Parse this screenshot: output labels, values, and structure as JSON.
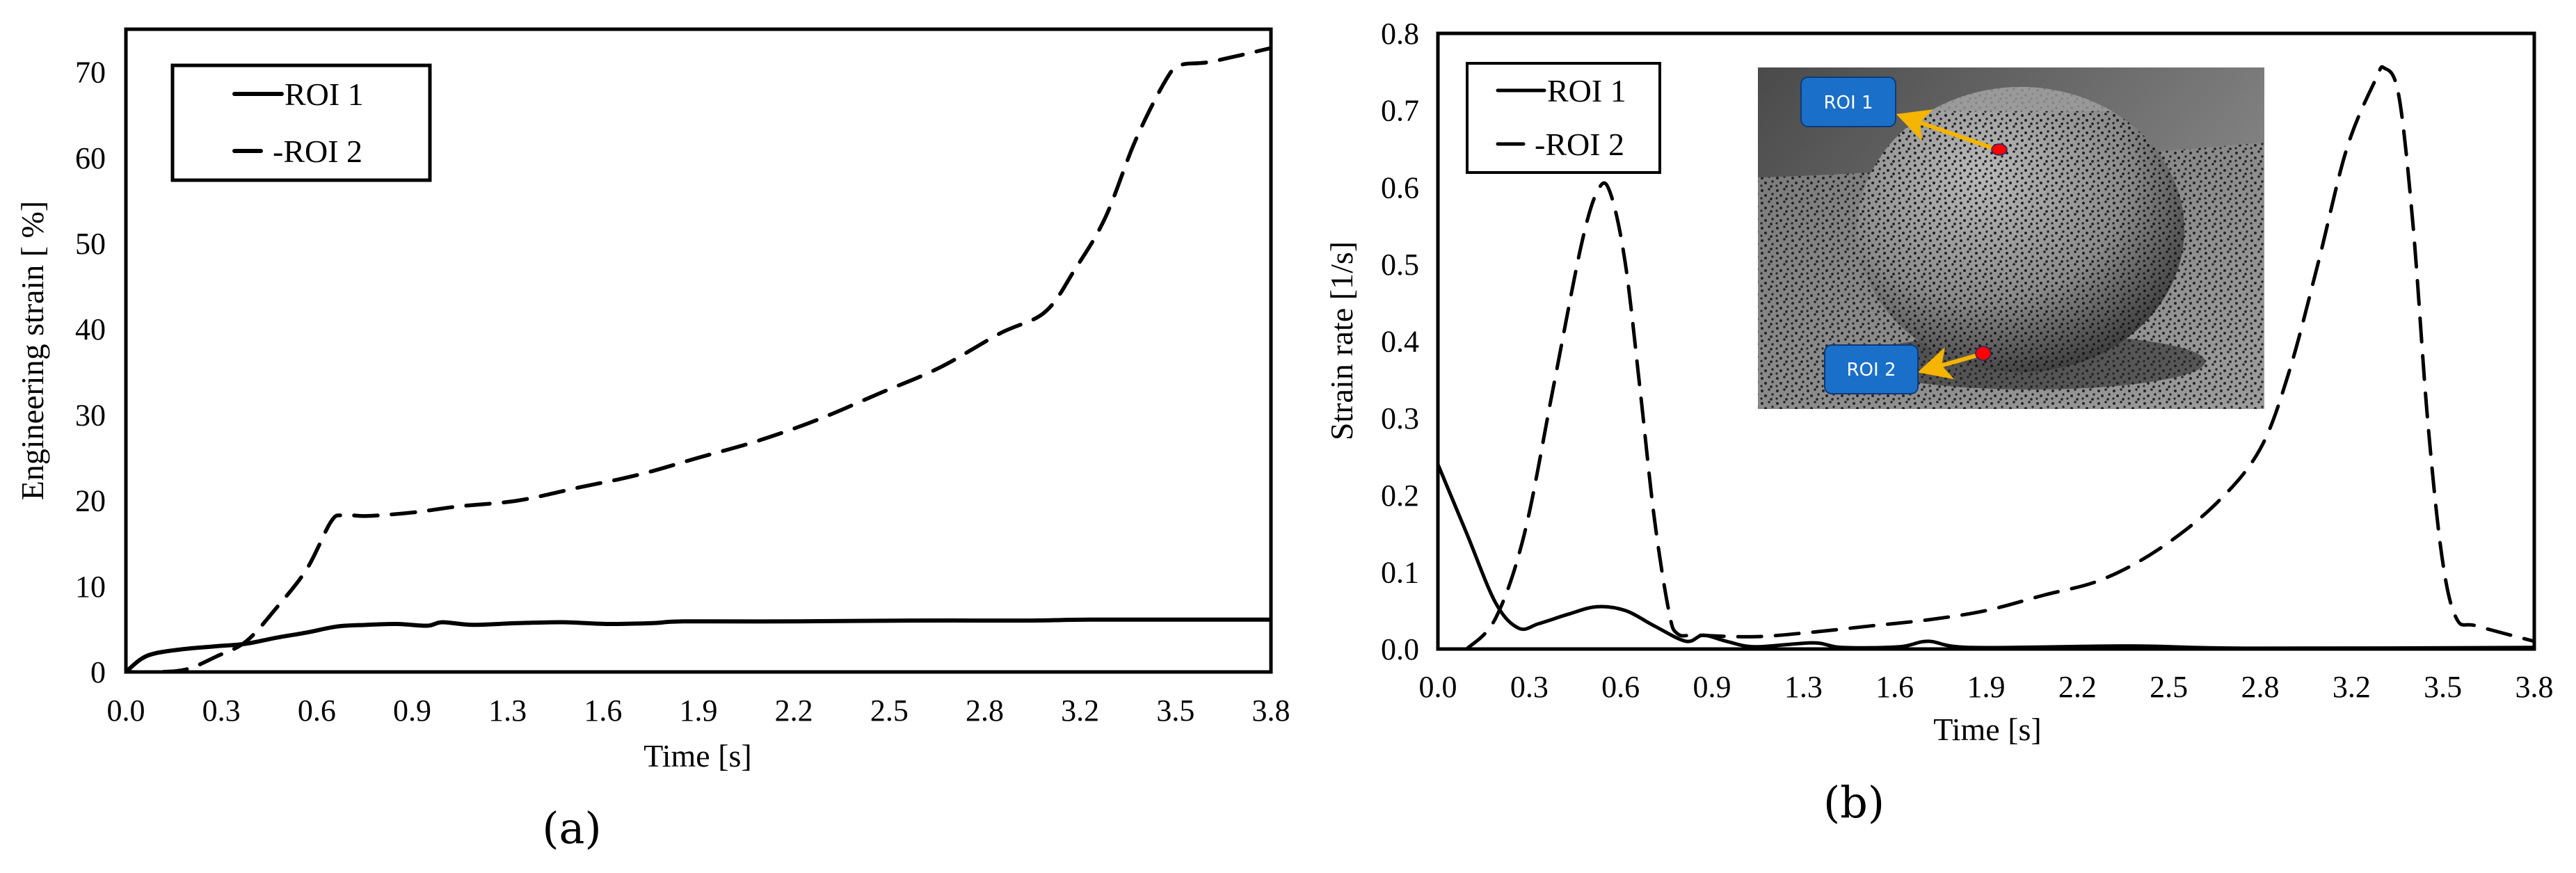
{
  "figure": {
    "panels": [
      {
        "caption": "(a)",
        "xlabel": "Time [s]",
        "ylabel": "Engineering strain [ %]",
        "xticks": [
          "0.0",
          "0.3",
          "0.6",
          "0.9",
          "1.3",
          "1.6",
          "1.9",
          "2.2",
          "2.5",
          "2.8",
          "3.2",
          "3.5",
          "3.8"
        ],
        "yticks": [
          "0",
          "10",
          "20",
          "30",
          "40",
          "50",
          "60",
          "70"
        ],
        "legend": [
          {
            "label": "ROI 1",
            "style": "solid"
          },
          {
            "label": "-ROI 2",
            "style": "dashed"
          }
        ]
      },
      {
        "caption": "(b)",
        "xlabel": "Time [s]",
        "ylabel": "Strain rate [1/s]",
        "xticks": [
          "0.0",
          "0.3",
          "0.6",
          "0.9",
          "1.3",
          "1.6",
          "1.9",
          "2.2",
          "2.5",
          "2.8",
          "3.2",
          "3.5",
          "3.8"
        ],
        "yticks": [
          "0.0",
          "0.1",
          "0.2",
          "0.3",
          "0.4",
          "0.5",
          "0.6",
          "0.7",
          "0.8"
        ],
        "legend": [
          {
            "label": "ROI 1",
            "style": "solid"
          },
          {
            "label": "-ROI 2",
            "style": "dashed"
          }
        ],
        "inset": {
          "description": "speckle-patterned dome on speckled surface",
          "labels": [
            {
              "text": "ROI 1",
              "marker": "red dot at top of dome"
            },
            {
              "text": "ROI 2",
              "marker": "red dot at base of dome"
            }
          ],
          "label_color": "#1a6fc9",
          "arrow_color": "#f5b400",
          "marker_color": "#ff0000"
        }
      }
    ]
  },
  "chart_data": [
    {
      "type": "line",
      "title": "",
      "caption": "(a)",
      "xlabel": "Time [s]",
      "ylabel": "Engineering strain [ %]",
      "xlim": [
        0,
        3.8
      ],
      "ylim": [
        0,
        75
      ],
      "xtick_labels": [
        "0.0",
        "0.3",
        "0.6",
        "0.9",
        "1.3",
        "1.6",
        "1.9",
        "2.2",
        "2.5",
        "2.8",
        "3.2",
        "3.5",
        "3.8"
      ],
      "ytick_values": [
        0,
        10,
        20,
        30,
        40,
        50,
        60,
        70
      ],
      "grid": false,
      "legend_position": "upper left",
      "series": [
        {
          "name": "ROI 1",
          "style": "solid",
          "x": [
            0,
            0.05,
            0.1,
            0.2,
            0.3,
            0.4,
            0.5,
            0.6,
            0.7,
            0.8,
            0.9,
            1.0,
            1.05,
            1.15,
            1.3,
            1.45,
            1.6,
            1.75,
            1.85,
            2.2,
            2.6,
            3.0,
            3.2,
            3.8
          ],
          "y": [
            0,
            1.5,
            2.2,
            2.7,
            3.0,
            3.3,
            4.0,
            4.6,
            5.3,
            5.5,
            5.6,
            5.4,
            5.8,
            5.5,
            5.7,
            5.8,
            5.6,
            5.7,
            5.9,
            5.9,
            6.0,
            6.0,
            6.1,
            6.1
          ]
        },
        {
          "name": "ROI 2",
          "style": "dashed",
          "x": [
            0,
            0.1,
            0.2,
            0.3,
            0.4,
            0.5,
            0.6,
            0.68,
            0.72,
            0.8,
            0.95,
            1.1,
            1.3,
            1.5,
            1.7,
            1.9,
            2.1,
            2.3,
            2.5,
            2.7,
            2.9,
            3.05,
            3.15,
            3.25,
            3.35,
            3.45,
            3.5,
            3.6,
            3.8
          ],
          "y": [
            0,
            0,
            0.3,
            1.8,
            3.6,
            7.5,
            12,
            17.5,
            18.3,
            18.2,
            18.6,
            19.3,
            20,
            21.5,
            23,
            25,
            27,
            29.5,
            32.5,
            35.5,
            39.5,
            42,
            47,
            53,
            62,
            69,
            70.8,
            71.2,
            72.8
          ]
        }
      ]
    },
    {
      "type": "line",
      "title": "",
      "caption": "(b)",
      "xlabel": "Time [s]",
      "ylabel": "Strain rate [1/s]",
      "xlim": [
        0,
        3.8
      ],
      "ylim": [
        0,
        0.8
      ],
      "xtick_labels": [
        "0.0",
        "0.3",
        "0.6",
        "0.9",
        "1.3",
        "1.6",
        "1.9",
        "2.2",
        "2.5",
        "2.8",
        "3.2",
        "3.5",
        "3.8"
      ],
      "ytick_values": [
        0,
        0.1,
        0.2,
        0.3,
        0.4,
        0.5,
        0.6,
        0.7,
        0.8
      ],
      "grid": false,
      "legend_position": "upper left",
      "series": [
        {
          "name": "ROI 1",
          "style": "solid",
          "x": [
            0,
            0.1,
            0.2,
            0.28,
            0.35,
            0.45,
            0.55,
            0.65,
            0.75,
            0.86,
            0.92,
            1.0,
            1.1,
            1.3,
            1.4,
            1.6,
            1.7,
            1.85,
            2.4,
            2.8,
            3.8
          ],
          "y": [
            0.24,
            0.15,
            0.06,
            0.027,
            0.033,
            0.045,
            0.055,
            0.05,
            0.03,
            0.01,
            0.018,
            0.01,
            0.003,
            0.008,
            0.002,
            0.003,
            0.01,
            0.002,
            0.004,
            0.001,
            0.002
          ]
        },
        {
          "name": "ROI 2",
          "style": "dashed",
          "x": [
            0.1,
            0.2,
            0.3,
            0.4,
            0.5,
            0.56,
            0.6,
            0.65,
            0.7,
            0.75,
            0.8,
            0.83,
            0.9,
            1.1,
            1.3,
            1.5,
            1.7,
            1.9,
            2.1,
            2.3,
            2.5,
            2.7,
            2.85,
            2.95,
            3.05,
            3.15,
            3.25,
            3.28,
            3.33,
            3.38,
            3.43,
            3.48,
            3.53,
            3.6,
            3.8
          ],
          "y": [
            0,
            0.04,
            0.15,
            0.34,
            0.53,
            0.6,
            0.59,
            0.5,
            0.34,
            0.17,
            0.05,
            0.02,
            0.018,
            0.016,
            0.022,
            0.03,
            0.038,
            0.05,
            0.07,
            0.09,
            0.13,
            0.19,
            0.26,
            0.36,
            0.5,
            0.65,
            0.74,
            0.755,
            0.72,
            0.55,
            0.3,
            0.12,
            0.04,
            0.03,
            0.01
          ]
        }
      ]
    }
  ]
}
